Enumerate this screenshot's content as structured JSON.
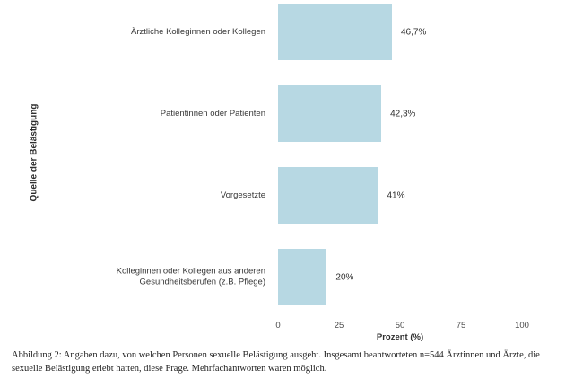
{
  "figure": {
    "caption": "Abbildung 2: Angaben dazu, von welchen Personen sexuelle Belästigung ausgeht. Insgesamt beantworteten n=544 Ärztinnen und Ärzte, die sexuelle Belästigung erlebt hatten, diese Frage. Mehrfachantworten waren möglich."
  },
  "chart_data": {
    "type": "bar",
    "orientation": "horizontal",
    "categories": [
      "Ärztliche Kolleginnen oder Kollegen",
      "Patientinnen oder Patienten",
      "Vorgesetzte",
      "Kolleginnen oder Kollegen aus anderen\nGesundheitsberufen (z.B. Pflege)"
    ],
    "values": [
      46.7,
      42.3,
      41,
      20
    ],
    "value_labels": [
      "46,7%",
      "42,3%",
      "41%",
      "20%"
    ],
    "title": "",
    "xlabel": "Prozent (%)",
    "ylabel": "Quelle der Belästigung",
    "xlim": [
      0,
      100
    ],
    "xticks": [
      0,
      25,
      50,
      75,
      100
    ],
    "bar_color": "#b7d8e3",
    "grid": false,
    "legend": false
  }
}
